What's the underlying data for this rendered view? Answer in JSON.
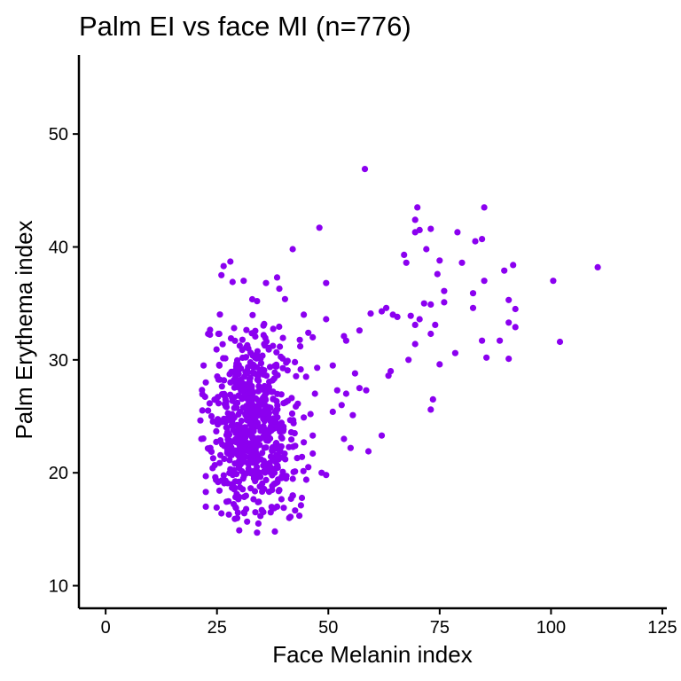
{
  "chart_data": {
    "type": "scatter",
    "title": "Palm EI vs face MI (n=776)",
    "xlabel": "Face Melanin index",
    "ylabel": "Palm Erythema index",
    "xlim": [
      -6,
      126
    ],
    "ylim": [
      8,
      57
    ],
    "xticks": [
      0,
      25,
      50,
      75,
      100,
      125
    ],
    "yticks": [
      10,
      20,
      30,
      40,
      50
    ],
    "grid": false,
    "legend": "none",
    "point_color": "#8B00F0",
    "n": 776,
    "points": [
      [
        58.2,
        46.9
      ],
      [
        70.0,
        43.5
      ],
      [
        85.0,
        43.5
      ],
      [
        69.5,
        42.4
      ],
      [
        48.0,
        41.7
      ],
      [
        70.5,
        41.5
      ],
      [
        73.0,
        41.6
      ],
      [
        69.5,
        41.3
      ],
      [
        79.0,
        41.3
      ],
      [
        84.5,
        40.7
      ],
      [
        83.0,
        40.5
      ],
      [
        72.0,
        39.8
      ],
      [
        42.0,
        39.8
      ],
      [
        67.0,
        39.3
      ],
      [
        67.5,
        38.6
      ],
      [
        75.0,
        38.8
      ],
      [
        80.0,
        38.6
      ],
      [
        91.5,
        38.4
      ],
      [
        89.5,
        37.9
      ],
      [
        110.5,
        38.2
      ],
      [
        74.5,
        37.6
      ],
      [
        85.0,
        37.0
      ],
      [
        100.5,
        37.0
      ],
      [
        49.5,
        36.8
      ],
      [
        76.0,
        36.1
      ],
      [
        82.5,
        35.9
      ],
      [
        90.5,
        35.3
      ],
      [
        71.5,
        35.0
      ],
      [
        76.0,
        35.1
      ],
      [
        73.0,
        34.9
      ],
      [
        63.0,
        34.6
      ],
      [
        82.5,
        34.6
      ],
      [
        92.0,
        34.5
      ],
      [
        59.5,
        34.1
      ],
      [
        62.0,
        34.3
      ],
      [
        68.5,
        33.9
      ],
      [
        64.5,
        34.0
      ],
      [
        65.5,
        33.8
      ],
      [
        70.5,
        33.6
      ],
      [
        74.0,
        33.1
      ],
      [
        69.5,
        33.1
      ],
      [
        90.5,
        33.3
      ],
      [
        49.5,
        33.6
      ],
      [
        92.0,
        32.9
      ],
      [
        57.0,
        32.6
      ],
      [
        73.0,
        32.3
      ],
      [
        53.5,
        32.1
      ],
      [
        54.0,
        31.7
      ],
      [
        69.5,
        31.4
      ],
      [
        84.5,
        31.7
      ],
      [
        88.5,
        31.7
      ],
      [
        102.0,
        31.6
      ],
      [
        78.5,
        30.6
      ],
      [
        85.5,
        30.2
      ],
      [
        90.5,
        30.1
      ],
      [
        75.0,
        29.6
      ],
      [
        68.0,
        30.0
      ],
      [
        51.0,
        29.5
      ],
      [
        56.0,
        28.8
      ],
      [
        64.0,
        29.0
      ],
      [
        63.5,
        28.6
      ],
      [
        54.0,
        27.0
      ],
      [
        57.0,
        27.5
      ],
      [
        52.0,
        27.3
      ],
      [
        58.5,
        27.3
      ],
      [
        73.5,
        26.5
      ],
      [
        53.0,
        26.0
      ],
      [
        73.0,
        25.6
      ],
      [
        51.0,
        25.4
      ],
      [
        55.5,
        25.1
      ],
      [
        62.0,
        23.3
      ],
      [
        53.5,
        23.0
      ],
      [
        55.0,
        22.2
      ],
      [
        59.0,
        21.9
      ],
      [
        49.5,
        19.8
      ],
      [
        48.5,
        20.0
      ],
      [
        43.5,
        16.2
      ],
      [
        41.5,
        16.1
      ],
      [
        40.0,
        16.9
      ],
      [
        38.0,
        14.8
      ],
      [
        34.0,
        14.7
      ],
      [
        30.0,
        14.9
      ],
      [
        38.5,
        17.0
      ],
      [
        26.0,
        16.4
      ],
      [
        22.5,
        17.0
      ],
      [
        31.0,
        37.0
      ],
      [
        28.0,
        38.7
      ],
      [
        26.0,
        37.5
      ],
      [
        36.0,
        36.8
      ],
      [
        38.5,
        37.3
      ],
      [
        39.0,
        36.3
      ],
      [
        34.0,
        35.2
      ],
      [
        26.5,
        38.3
      ],
      [
        28.5,
        36.9
      ],
      [
        46.5,
        32.0
      ],
      [
        44.5,
        34.0
      ],
      [
        45.5,
        32.4
      ],
      [
        47.5,
        29.3
      ],
      [
        42.5,
        29.8
      ],
      [
        45.0,
        28.5
      ],
      [
        47.0,
        27.0
      ],
      [
        46.0,
        25.2
      ],
      [
        44.5,
        24.9
      ],
      [
        46.5,
        23.3
      ],
      [
        43.0,
        21.3
      ],
      [
        45.5,
        20.5
      ],
      [
        46.5,
        21.7
      ],
      [
        44.5,
        22.7
      ],
      [
        42.0,
        18.0
      ],
      [
        40.5,
        19.5
      ],
      [
        22.0,
        29.5
      ],
      [
        21.5,
        23.0
      ],
      [
        22.5,
        19.7
      ],
      [
        23.0,
        32.3
      ],
      [
        22.5,
        28.0
      ],
      [
        23.0,
        25.5
      ],
      [
        23.5,
        22.2
      ],
      [
        22.5,
        18.3
      ]
    ],
    "cluster": {
      "x_range": [
        21,
        46
      ],
      "y_range": [
        15.5,
        35.5
      ],
      "center": [
        33,
        24.5
      ],
      "count": 656
    }
  }
}
